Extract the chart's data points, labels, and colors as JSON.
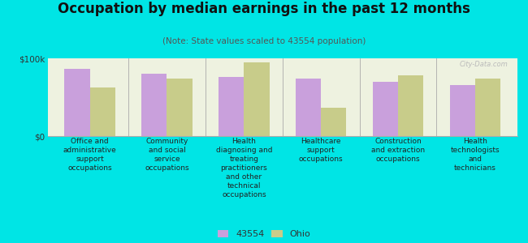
{
  "title": "Occupation by median earnings in the past 12 months",
  "subtitle": "(Note: State values scaled to 43554 population)",
  "categories": [
    "Office and\nadministrative\nsupport\noccupations",
    "Community\nand social\nservice\noccupations",
    "Health\ndiagnosing and\ntreating\npractitioners\nand other\ntechnical\noccupations",
    "Healthcare\nsupport\noccupations",
    "Construction\nand extraction\noccupations",
    "Health\ntechnologists\nand\ntechnicians"
  ],
  "values_43554": [
    86000,
    80000,
    76000,
    74000,
    70000,
    66000
  ],
  "values_ohio": [
    62000,
    74000,
    95000,
    36000,
    78000,
    74000
  ],
  "color_43554": "#c9a0dc",
  "color_ohio": "#c8cc8a",
  "bar_chart_bg": "#eef2e0",
  "background_color": "#00e5e5",
  "ymax": 100000,
  "yticks": [
    0,
    100000
  ],
  "ytick_labels": [
    "$0",
    "$100k"
  ],
  "legend_labels": [
    "43554",
    "Ohio"
  ],
  "watermark": "City-Data.com",
  "title_fontsize": 12,
  "subtitle_fontsize": 7.5,
  "label_fontsize": 6.5
}
